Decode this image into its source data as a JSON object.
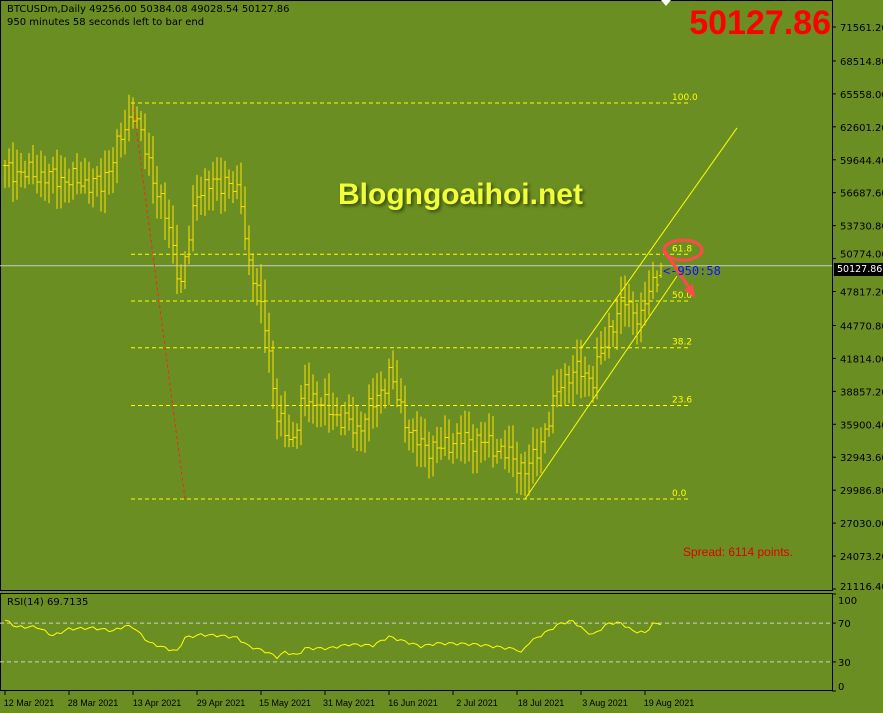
{
  "header": {
    "symbol_line": "BTCUSDm,Daily  49256.00 50384.08 49028.54 50127.86",
    "timer_line": "950 minutes 58 seconds left to bar end"
  },
  "big_price": "50127.86",
  "watermark": "Blogngoaihoi.net",
  "spread_text": "Spread: 6114 points.",
  "countdown": "<-950:58",
  "current_price_tag": "50127.86",
  "rsi_label": "RSI(14) 69.7135",
  "colors": {
    "background": "#6b8e23",
    "bars": "#ffe000",
    "fib": "#ffff00",
    "annotation": "#ff4040",
    "spread": "#e00000",
    "big_price": "#ff0000"
  },
  "chart_data": [
    {
      "type": "ohlc",
      "title": "BTCUSDm,Daily",
      "y_ticks": [
        "71561.20",
        "68514.80",
        "65558.00",
        "62601.20",
        "59644.40",
        "56687.60",
        "53730.80",
        "50774.00",
        "47817.20",
        "44770.80",
        "41814.00",
        "38857.20",
        "35900.40",
        "32943.60",
        "29986.80",
        "27030.00",
        "24073.20",
        "21116.40"
      ],
      "ylim": [
        21116.4,
        71561.2
      ],
      "x_ticks": [
        "12 Mar 2021",
        "28 Mar 2021",
        "13 Apr 2021",
        "29 Apr 2021",
        "15 May 2021",
        "31 May 2021",
        "16 Jun 2021",
        "2 Jul 2021",
        "18 Jul 2021",
        "3 Aug 2021",
        "19 Aug 2021"
      ],
      "last_bar": {
        "open": 49256.0,
        "high": 50384.08,
        "low": 49028.54,
        "close": 50127.86
      },
      "close_anchors": [
        [
          "2021-03-12",
          58725
        ],
        [
          "2021-03-20",
          58276
        ],
        [
          "2021-03-28",
          57828
        ],
        [
          "2021-04-05",
          57379
        ],
        [
          "2021-04-13",
          64111
        ],
        [
          "2021-04-16",
          60520
        ],
        [
          "2021-04-22",
          53340
        ],
        [
          "2021-04-25",
          48400
        ],
        [
          "2021-04-29",
          56930
        ],
        [
          "2021-05-06",
          57828
        ],
        [
          "2021-05-10",
          56030
        ],
        [
          "2021-05-12",
          50200
        ],
        [
          "2021-05-16",
          45260
        ],
        [
          "2021-05-19",
          36285
        ],
        [
          "2021-05-23",
          34490
        ],
        [
          "2021-05-26",
          38980
        ],
        [
          "2021-06-01",
          37180
        ],
        [
          "2021-06-08",
          35390
        ],
        [
          "2021-06-14",
          38980
        ],
        [
          "2021-06-16",
          40320
        ],
        [
          "2021-06-22",
          34490
        ],
        [
          "2021-06-28",
          33590
        ],
        [
          "2021-07-02",
          34490
        ],
        [
          "2021-07-08",
          34490
        ],
        [
          "2021-07-14",
          33590
        ],
        [
          "2021-07-20",
          31800
        ],
        [
          "2021-07-22",
          32700
        ],
        [
          "2021-07-26",
          36285
        ],
        [
          "2021-07-29",
          39870
        ],
        [
          "2021-08-03",
          40770
        ],
        [
          "2021-08-06",
          39870
        ],
        [
          "2021-08-10",
          44360
        ],
        [
          "2021-08-14",
          47060
        ],
        [
          "2021-08-18",
          45260
        ],
        [
          "2021-08-20",
          47955
        ],
        [
          "2021-08-23",
          50127.86
        ]
      ],
      "fibonacci": {
        "high": 64740,
        "low": 29195,
        "levels": [
          "0.0",
          "23.6",
          "38.2",
          "50.0",
          "61.8",
          "100.0"
        ],
        "start_date": "2021-04-13"
      },
      "swing_line": {
        "from": [
          "2021-04-13",
          64740
        ],
        "to": [
          "2021-04-26",
          29195
        ]
      },
      "channel": {
        "lower": [
          [
            "2021-07-20",
            29195
          ],
          [
            "2021-08-27",
            49200
          ]
        ],
        "upper": [
          [
            "2021-08-03",
            42700
          ],
          [
            "2021-09-11",
            62500
          ]
        ]
      }
    },
    {
      "type": "line",
      "title": "RSI(14) 69.7135",
      "ylim": [
        0,
        100
      ],
      "y_ticks": [
        "100",
        "70",
        "30",
        "0"
      ],
      "levels": [
        70,
        30
      ],
      "points": [
        [
          "2021-03-12",
          73
        ],
        [
          "2021-03-15",
          66
        ],
        [
          "2021-03-20",
          66
        ],
        [
          "2021-03-24",
          57
        ],
        [
          "2021-03-28",
          64
        ],
        [
          "2021-04-03",
          65
        ],
        [
          "2021-04-08",
          62
        ],
        [
          "2021-04-11",
          67
        ],
        [
          "2021-04-13",
          66
        ],
        [
          "2021-04-17",
          50
        ],
        [
          "2021-04-22",
          43
        ],
        [
          "2021-04-24",
          41
        ],
        [
          "2021-04-26",
          55
        ],
        [
          "2021-04-30",
          58
        ],
        [
          "2021-05-05",
          57
        ],
        [
          "2021-05-09",
          55
        ],
        [
          "2021-05-12",
          46
        ],
        [
          "2021-05-16",
          41
        ],
        [
          "2021-05-19",
          35
        ],
        [
          "2021-05-21",
          40
        ],
        [
          "2021-05-24",
          37
        ],
        [
          "2021-05-26",
          44
        ],
        [
          "2021-06-01",
          44
        ],
        [
          "2021-06-06",
          48
        ],
        [
          "2021-06-12",
          47
        ],
        [
          "2021-06-16",
          56
        ],
        [
          "2021-06-20",
          51
        ],
        [
          "2021-06-24",
          46
        ],
        [
          "2021-06-28",
          49
        ],
        [
          "2021-07-02",
          49
        ],
        [
          "2021-07-08",
          48
        ],
        [
          "2021-07-14",
          45
        ],
        [
          "2021-07-18",
          43
        ],
        [
          "2021-07-19",
          39
        ],
        [
          "2021-07-21",
          50
        ],
        [
          "2021-07-25",
          60
        ],
        [
          "2021-07-29",
          70
        ],
        [
          "2021-08-01",
          72
        ],
        [
          "2021-08-04",
          62
        ],
        [
          "2021-08-06",
          58
        ],
        [
          "2021-08-10",
          70
        ],
        [
          "2021-08-13",
          70
        ],
        [
          "2021-08-16",
          62
        ],
        [
          "2021-08-19",
          60
        ],
        [
          "2021-08-21",
          69
        ],
        [
          "2021-08-23",
          69.7135
        ]
      ]
    }
  ]
}
